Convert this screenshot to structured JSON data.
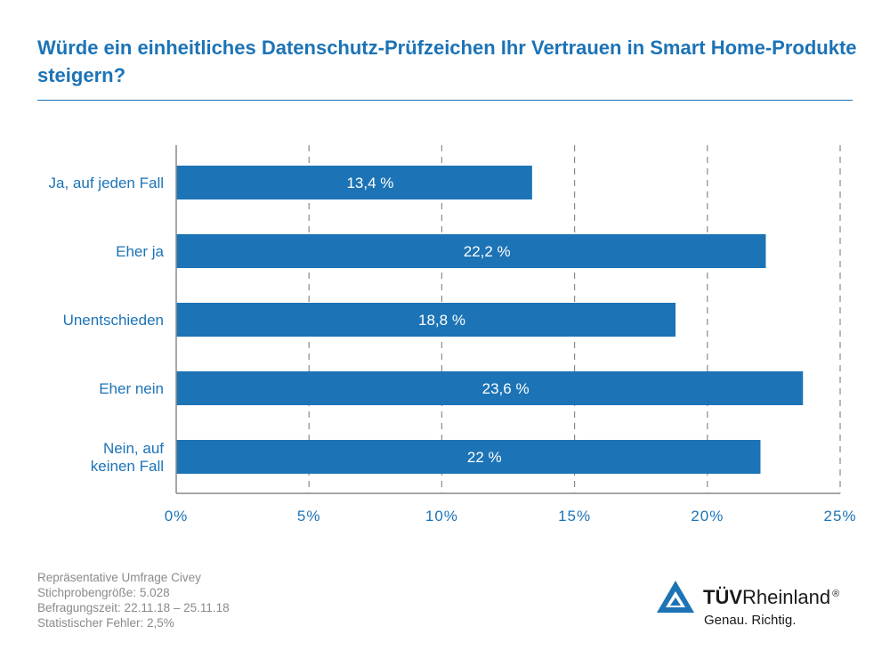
{
  "title": "Würde ein einheitliches Datenschutz-Prüfzeichen Ihr Vertrauen in Smart Home-Produkte steigern?",
  "chart_data": {
    "type": "bar",
    "orientation": "horizontal",
    "categories": [
      "Ja, auf jeden Fall",
      "Eher ja",
      "Unentschieden",
      "Eher nein",
      "Nein, auf keinen Fall"
    ],
    "category_lines": [
      [
        "Ja, auf jeden Fall"
      ],
      [
        "Eher ja"
      ],
      [
        "Unentschieden"
      ],
      [
        "Eher nein"
      ],
      [
        "Nein, auf",
        "keinen Fall"
      ]
    ],
    "values": [
      13.4,
      22.2,
      18.8,
      23.6,
      22
    ],
    "value_labels": [
      "13,4 %",
      "22,2 %",
      "18,8 %",
      "23,6 %",
      "22 %"
    ],
    "xlim": [
      0,
      25
    ],
    "xticks": [
      0,
      5,
      10,
      15,
      20,
      25
    ],
    "xtick_labels": [
      "0%",
      "5%",
      "10%",
      "15%",
      "20%",
      "25%"
    ],
    "grid": "vertical dashed",
    "bar_color": "#1c73b6"
  },
  "footnotes": {
    "line1": "Repräsentative Umfrage Civey",
    "line2": "Stichprobengröße: 5.028",
    "line3": "Befragungszeit: 22.11.18 – 25.11.18",
    "line4": "Statistischer Fehler: 2,5%"
  },
  "brand": {
    "name_bold": "TÜV",
    "name_rest": "Rheinland",
    "registered": "®",
    "slogan": "Genau. Richtig.",
    "logo_icon": "triangle-logo-icon"
  },
  "colors": {
    "accent": "#1c73b6",
    "grid": "#8a8a8a",
    "footnote": "#8a8a8a"
  }
}
